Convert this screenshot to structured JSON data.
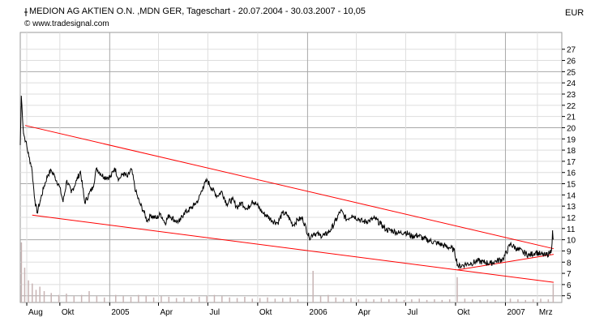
{
  "header": {
    "title": "MEDION AG AKTIEN O.N. ,MDN GER, Tageschart - 20.07.2004 - 30.03.2007 - 10,05",
    "source": "© www.tradesignal.com",
    "currency": "EUR"
  },
  "chart_data": {
    "type": "line",
    "title": "MEDION AG AKTIEN O.N. ,MDN GER, Tageschart - 20.07.2004 - 30.03.2007 - 10,05",
    "xlabel": "",
    "ylabel": "EUR",
    "x_ticks": [
      "Aug",
      "Okt",
      "2005",
      "Apr",
      "Jul",
      "Okt",
      "2006",
      "Apr",
      "Jul",
      "Okt",
      "2007",
      "Mrz"
    ],
    "x_tick_dates": [
      "2004-08-01",
      "2004-10-01",
      "2005-01-01",
      "2005-04-01",
      "2005-07-01",
      "2005-10-01",
      "2006-01-01",
      "2006-04-01",
      "2006-07-01",
      "2006-10-01",
      "2007-01-01",
      "2007-03-01"
    ],
    "xlim": [
      "2004-07-20",
      "2007-04-15"
    ],
    "y_ticks": [
      5,
      6,
      7,
      8,
      9,
      10,
      11,
      12,
      13,
      14,
      15,
      16,
      17,
      18,
      19,
      20,
      21,
      22,
      23,
      24,
      25,
      26,
      27
    ],
    "ylim": [
      4.4,
      28.5
    ],
    "grid": true,
    "last_value": "10,05",
    "series": [
      {
        "color": "#000000",
        "x": [
          "2004-07-20",
          "2004-07-22",
          "2004-07-26",
          "2004-07-30",
          "2004-08-05",
          "2004-08-10",
          "2004-08-16",
          "2004-08-20",
          "2004-08-26",
          "2004-09-02",
          "2004-09-09",
          "2004-09-15",
          "2004-09-22",
          "2004-09-30",
          "2004-10-07",
          "2004-10-14",
          "2004-10-22",
          "2004-11-01",
          "2004-11-08",
          "2004-11-16",
          "2004-11-24",
          "2004-12-01",
          "2004-12-08",
          "2004-12-15",
          "2004-12-22",
          "2005-01-03",
          "2005-01-10",
          "2005-01-18",
          "2005-01-26",
          "2005-02-03",
          "2005-02-10",
          "2005-02-18",
          "2005-02-25",
          "2005-03-04",
          "2005-03-11",
          "2005-03-18",
          "2005-03-28",
          "2005-04-05",
          "2005-04-13",
          "2005-04-21",
          "2005-05-02",
          "2005-05-10",
          "2005-05-18",
          "2005-05-26",
          "2005-06-06",
          "2005-06-14",
          "2005-06-22",
          "2005-06-30",
          "2005-07-08",
          "2005-07-18",
          "2005-07-27",
          "2005-08-05",
          "2005-08-15",
          "2005-08-24",
          "2005-09-02",
          "2005-09-12",
          "2005-09-21",
          "2005-09-30",
          "2005-10-10",
          "2005-10-19",
          "2005-10-28",
          "2005-11-07",
          "2005-11-16",
          "2005-11-25",
          "2005-12-05",
          "2005-12-14",
          "2005-12-23",
          "2006-01-04",
          "2006-01-13",
          "2006-01-24",
          "2006-02-02",
          "2006-02-13",
          "2006-02-22",
          "2006-03-03",
          "2006-03-14",
          "2006-03-24",
          "2006-04-04",
          "2006-04-13",
          "2006-04-25",
          "2006-05-05",
          "2006-05-16",
          "2006-05-26",
          "2006-06-07",
          "2006-06-19",
          "2006-06-30",
          "2006-07-12",
          "2006-07-24",
          "2006-08-03",
          "2006-08-15",
          "2006-08-28",
          "2006-09-08",
          "2006-09-20",
          "2006-09-28",
          "2006-10-06",
          "2006-10-18",
          "2006-10-30",
          "2006-11-10",
          "2006-11-22",
          "2006-12-05",
          "2006-12-15",
          "2006-12-28",
          "2007-01-10",
          "2007-01-22",
          "2007-02-02",
          "2007-02-14",
          "2007-02-26",
          "2007-03-07",
          "2007-03-16",
          "2007-03-23",
          "2007-03-27",
          "2007-03-29",
          "2007-03-30"
        ],
        "values": [
          18.5,
          22.8,
          19.5,
          18.8,
          17.4,
          16.5,
          13.5,
          12.4,
          13.5,
          14.8,
          15.8,
          16.2,
          15.6,
          14.8,
          13.4,
          15.3,
          14.2,
          15.3,
          16.1,
          13.3,
          14.1,
          14.7,
          16.4,
          15.9,
          15.6,
          15.6,
          16.4,
          15.4,
          15.9,
          15.6,
          16.3,
          14.3,
          13.3,
          12.6,
          11.7,
          12.2,
          11.9,
          12.3,
          11.5,
          12.2,
          11.7,
          11.6,
          12.4,
          12.6,
          13.1,
          13.6,
          14.7,
          15.3,
          14.6,
          13.9,
          14.3,
          13.2,
          13.6,
          12.9,
          13.3,
          12.7,
          13.5,
          13.1,
          12.4,
          12.1,
          11.7,
          11.5,
          12.4,
          12.2,
          11.3,
          11.8,
          11.9,
          10.2,
          10.6,
          10.4,
          10.4,
          10.9,
          11.7,
          12.6,
          11.8,
          12.2,
          11.9,
          11.6,
          11.7,
          11.9,
          11.4,
          10.9,
          10.8,
          10.6,
          10.7,
          10.3,
          10.4,
          10.1,
          9.9,
          9.7,
          9.5,
          9.3,
          9.1,
          7.6,
          7.8,
          7.9,
          8.1,
          8.0,
          7.9,
          8.1,
          8.3,
          9.6,
          9.2,
          8.9,
          8.6,
          8.9,
          8.7,
          8.6,
          8.8,
          9.1,
          10.8,
          10.05
        ]
      }
    ],
    "trendlines": [
      {
        "color": "#ff0000",
        "from": {
          "x": "2004-07-29",
          "y": 20.2
        },
        "to": {
          "x": "2007-03-31",
          "y": 9.2
        }
      },
      {
        "color": "#ff0000",
        "from": {
          "x": "2004-08-11",
          "y": 12.2
        },
        "to": {
          "x": "2007-03-31",
          "y": 6.2
        }
      },
      {
        "color": "#ff0000",
        "from": {
          "x": "2006-10-04",
          "y": 7.3
        },
        "to": {
          "x": "2007-03-31",
          "y": 8.7
        }
      }
    ],
    "volume": {
      "color": "#c8b4b4",
      "x": [
        "2004-07-21",
        "2004-07-27",
        "2004-08-03",
        "2004-08-10",
        "2004-08-17",
        "2004-08-24",
        "2004-09-01",
        "2004-09-14",
        "2004-09-28",
        "2004-10-12",
        "2004-10-26",
        "2004-11-09",
        "2004-11-23",
        "2004-12-07",
        "2004-12-21",
        "2005-01-11",
        "2005-01-25",
        "2005-02-08",
        "2005-02-22",
        "2005-03-08",
        "2005-03-22",
        "2005-04-05",
        "2005-04-19",
        "2005-05-03",
        "2005-05-17",
        "2005-05-31",
        "2005-06-14",
        "2005-06-28",
        "2005-07-12",
        "2005-07-26",
        "2005-08-09",
        "2005-08-23",
        "2005-09-06",
        "2005-09-20",
        "2005-10-04",
        "2005-10-18",
        "2005-11-01",
        "2005-11-15",
        "2005-11-29",
        "2005-12-13",
        "2006-01-10",
        "2006-01-24",
        "2006-02-07",
        "2006-02-21",
        "2006-03-07",
        "2006-03-21",
        "2006-04-04",
        "2006-04-18",
        "2006-05-02",
        "2006-05-16",
        "2006-05-30",
        "2006-06-13",
        "2006-06-27",
        "2006-07-11",
        "2006-07-25",
        "2006-08-08",
        "2006-08-22",
        "2006-09-05",
        "2006-09-19",
        "2006-10-03",
        "2006-10-17",
        "2006-10-31",
        "2006-11-14",
        "2006-11-28",
        "2006-12-12",
        "2007-01-09",
        "2007-01-23",
        "2007-02-06",
        "2007-02-20",
        "2007-03-06",
        "2007-03-20",
        "2007-03-29"
      ],
      "values": [
        0.95,
        0.55,
        0.35,
        0.3,
        0.2,
        0.25,
        0.18,
        0.15,
        0.12,
        0.14,
        0.1,
        0.12,
        0.18,
        0.1,
        0.08,
        0.12,
        0.1,
        0.09,
        0.12,
        0.1,
        0.08,
        0.1,
        0.09,
        0.07,
        0.08,
        0.06,
        0.09,
        0.1,
        0.12,
        0.1,
        0.08,
        0.07,
        0.09,
        0.06,
        0.07,
        0.08,
        0.06,
        0.07,
        0.08,
        0.05,
        0.5,
        0.1,
        0.12,
        0.08,
        0.06,
        0.07,
        0.05,
        0.06,
        0.05,
        0.07,
        0.05,
        0.06,
        0.04,
        0.05,
        0.06,
        0.04,
        0.05,
        0.04,
        0.05,
        0.4,
        0.06,
        0.05,
        0.04,
        0.05,
        0.04,
        0.06,
        0.05,
        0.04,
        0.05,
        0.06,
        0.05,
        0.3
      ]
    }
  }
}
